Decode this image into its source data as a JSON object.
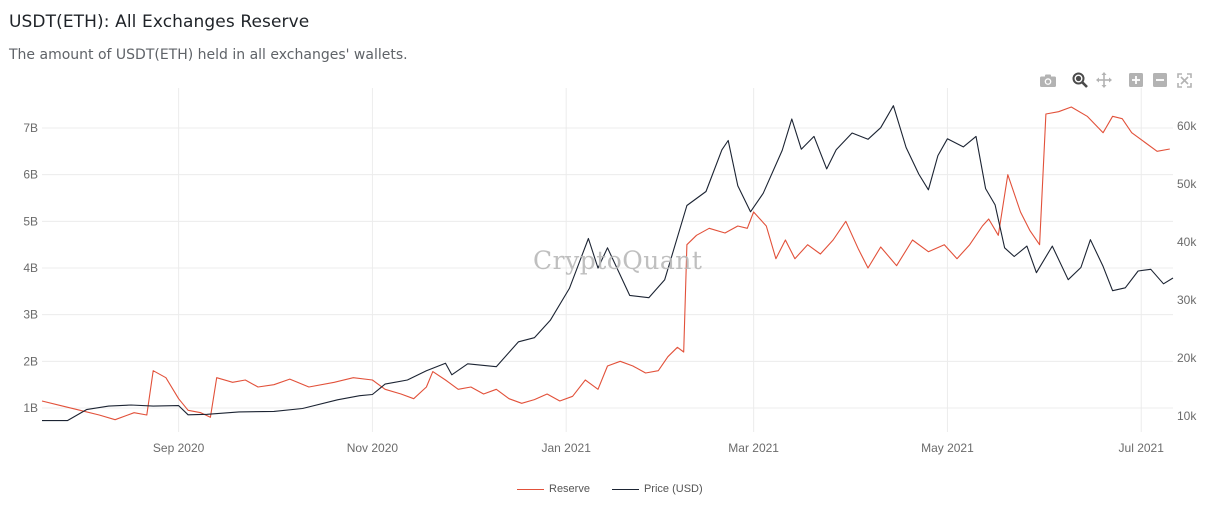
{
  "header": {
    "title": "USDT(ETH): All Exchanges Reserve",
    "subtitle": "The amount of USDT(ETH) held in all exchanges' wallets."
  },
  "watermark": "CryptoQuant",
  "modebar": [
    {
      "name": "camera-icon",
      "label": "Download plot as png"
    },
    {
      "name": "zoom-icon",
      "label": "Zoom"
    },
    {
      "name": "pan-icon",
      "label": "Pan"
    },
    {
      "name": "zoom-in-icon",
      "label": "Zoom in"
    },
    {
      "name": "zoom-out-icon",
      "label": "Zoom out"
    },
    {
      "name": "autoscale-icon",
      "label": "Autoscale"
    }
  ],
  "colors": {
    "reserve": "#e2513a",
    "price": "#1c2433",
    "grid": "#ececec"
  },
  "chart_data": {
    "type": "line",
    "title": "USDT(ETH): All Exchanges Reserve",
    "x_range": [
      "2020-07-20",
      "2021-07-11"
    ],
    "x_ticks": [
      {
        "date": "2020-09-01",
        "label": "Sep 2020"
      },
      {
        "date": "2020-11-01",
        "label": "Nov 2020"
      },
      {
        "date": "2021-01-01",
        "label": "Jan 2021"
      },
      {
        "date": "2021-03-01",
        "label": "Mar 2021"
      },
      {
        "date": "2021-05-01",
        "label": "May 2021"
      },
      {
        "date": "2021-07-01",
        "label": "Jul 2021"
      }
    ],
    "y_left": {
      "ticks": [
        1,
        2,
        3,
        4,
        5,
        6,
        7
      ],
      "tick_labels": [
        "1B",
        "2B",
        "3B",
        "4B",
        "5B",
        "6B",
        "7B"
      ],
      "unit": "B"
    },
    "y_right": {
      "ticks": [
        10000,
        20000,
        30000,
        40000,
        50000,
        60000
      ],
      "tick_labels": [
        "10k",
        "20k",
        "30k",
        "40k",
        "50k",
        "60k"
      ]
    },
    "grid": true,
    "legend_position": "bottom-center",
    "series": [
      {
        "name": "Reserve",
        "axis": "left",
        "unit": "USDT (billions)",
        "points": [
          [
            "2020-07-20",
            1.15
          ],
          [
            "2020-07-26",
            1.05
          ],
          [
            "2020-08-01",
            0.95
          ],
          [
            "2020-08-07",
            0.85
          ],
          [
            "2020-08-12",
            0.75
          ],
          [
            "2020-08-18",
            0.9
          ],
          [
            "2020-08-22",
            0.85
          ],
          [
            "2020-08-24",
            1.8
          ],
          [
            "2020-08-28",
            1.65
          ],
          [
            "2020-09-01",
            1.2
          ],
          [
            "2020-09-04",
            0.95
          ],
          [
            "2020-09-08",
            0.9
          ],
          [
            "2020-09-11",
            0.8
          ],
          [
            "2020-09-13",
            1.65
          ],
          [
            "2020-09-18",
            1.55
          ],
          [
            "2020-09-22",
            1.6
          ],
          [
            "2020-09-26",
            1.45
          ],
          [
            "2020-10-01",
            1.5
          ],
          [
            "2020-10-06",
            1.62
          ],
          [
            "2020-10-12",
            1.45
          ],
          [
            "2020-10-20",
            1.55
          ],
          [
            "2020-10-26",
            1.65
          ],
          [
            "2020-11-01",
            1.6
          ],
          [
            "2020-11-05",
            1.4
          ],
          [
            "2020-11-10",
            1.3
          ],
          [
            "2020-11-14",
            1.2
          ],
          [
            "2020-11-18",
            1.45
          ],
          [
            "2020-11-20",
            1.78
          ],
          [
            "2020-11-24",
            1.6
          ],
          [
            "2020-11-28",
            1.4
          ],
          [
            "2020-12-02",
            1.45
          ],
          [
            "2020-12-06",
            1.3
          ],
          [
            "2020-12-10",
            1.4
          ],
          [
            "2020-12-14",
            1.2
          ],
          [
            "2020-12-18",
            1.1
          ],
          [
            "2020-12-22",
            1.18
          ],
          [
            "2020-12-26",
            1.3
          ],
          [
            "2020-12-30",
            1.15
          ],
          [
            "2021-01-03",
            1.25
          ],
          [
            "2021-01-07",
            1.6
          ],
          [
            "2021-01-11",
            1.4
          ],
          [
            "2021-01-14",
            1.9
          ],
          [
            "2021-01-18",
            2.0
          ],
          [
            "2021-01-22",
            1.9
          ],
          [
            "2021-01-26",
            1.75
          ],
          [
            "2021-01-30",
            1.8
          ],
          [
            "2021-02-02",
            2.1
          ],
          [
            "2021-02-05",
            2.3
          ],
          [
            "2021-02-07",
            2.2
          ],
          [
            "2021-02-08",
            4.5
          ],
          [
            "2021-02-11",
            4.7
          ],
          [
            "2021-02-15",
            4.85
          ],
          [
            "2021-02-20",
            4.75
          ],
          [
            "2021-02-24",
            4.9
          ],
          [
            "2021-02-27",
            4.85
          ],
          [
            "2021-03-01",
            5.2
          ],
          [
            "2021-03-05",
            4.9
          ],
          [
            "2021-03-08",
            4.2
          ],
          [
            "2021-03-11",
            4.6
          ],
          [
            "2021-03-14",
            4.2
          ],
          [
            "2021-03-18",
            4.5
          ],
          [
            "2021-03-22",
            4.3
          ],
          [
            "2021-03-26",
            4.6
          ],
          [
            "2021-03-30",
            5.0
          ],
          [
            "2021-04-03",
            4.4
          ],
          [
            "2021-04-06",
            4.0
          ],
          [
            "2021-04-10",
            4.45
          ],
          [
            "2021-04-15",
            4.05
          ],
          [
            "2021-04-20",
            4.6
          ],
          [
            "2021-04-25",
            4.35
          ],
          [
            "2021-04-30",
            4.5
          ],
          [
            "2021-05-04",
            4.2
          ],
          [
            "2021-05-08",
            4.5
          ],
          [
            "2021-05-12",
            4.9
          ],
          [
            "2021-05-14",
            5.05
          ],
          [
            "2021-05-17",
            4.7
          ],
          [
            "2021-05-20",
            6.0
          ],
          [
            "2021-05-24",
            5.2
          ],
          [
            "2021-05-27",
            4.8
          ],
          [
            "2021-05-30",
            4.5
          ],
          [
            "2021-06-01",
            7.3
          ],
          [
            "2021-06-05",
            7.35
          ],
          [
            "2021-06-09",
            7.45
          ],
          [
            "2021-06-14",
            7.25
          ],
          [
            "2021-06-19",
            6.9
          ],
          [
            "2021-06-22",
            7.25
          ],
          [
            "2021-06-25",
            7.2
          ],
          [
            "2021-06-28",
            6.9
          ],
          [
            "2021-07-02",
            6.7
          ],
          [
            "2021-07-06",
            6.5
          ],
          [
            "2021-07-10",
            6.55
          ]
        ]
      },
      {
        "name": "Price (USD)",
        "axis": "right",
        "unit": "USD",
        "points": [
          [
            "2020-07-20",
            9200
          ],
          [
            "2020-07-28",
            9200
          ],
          [
            "2020-08-03",
            11100
          ],
          [
            "2020-08-10",
            11700
          ],
          [
            "2020-08-17",
            11900
          ],
          [
            "2020-08-24",
            11700
          ],
          [
            "2020-09-01",
            11800
          ],
          [
            "2020-09-04",
            10200
          ],
          [
            "2020-09-10",
            10300
          ],
          [
            "2020-09-20",
            10700
          ],
          [
            "2020-10-01",
            10800
          ],
          [
            "2020-10-10",
            11300
          ],
          [
            "2020-10-21",
            12800
          ],
          [
            "2020-10-28",
            13500
          ],
          [
            "2020-11-01",
            13700
          ],
          [
            "2020-11-05",
            15500
          ],
          [
            "2020-11-12",
            16200
          ],
          [
            "2020-11-18",
            17800
          ],
          [
            "2020-11-24",
            19100
          ],
          [
            "2020-11-26",
            17100
          ],
          [
            "2020-12-01",
            19000
          ],
          [
            "2020-12-10",
            18500
          ],
          [
            "2020-12-17",
            22800
          ],
          [
            "2020-12-22",
            23500
          ],
          [
            "2020-12-27",
            26500
          ],
          [
            "2021-01-02",
            32000
          ],
          [
            "2021-01-08",
            40600
          ],
          [
            "2021-01-11",
            35500
          ],
          [
            "2021-01-14",
            39000
          ],
          [
            "2021-01-21",
            30800
          ],
          [
            "2021-01-27",
            30400
          ],
          [
            "2021-02-01",
            33500
          ],
          [
            "2021-02-08",
            46300
          ],
          [
            "2021-02-14",
            48700
          ],
          [
            "2021-02-19",
            55900
          ],
          [
            "2021-02-21",
            57500
          ],
          [
            "2021-02-24",
            49700
          ],
          [
            "2021-02-28",
            45200
          ],
          [
            "2021-03-04",
            48400
          ],
          [
            "2021-03-10",
            55800
          ],
          [
            "2021-03-13",
            61200
          ],
          [
            "2021-03-16",
            56000
          ],
          [
            "2021-03-20",
            58200
          ],
          [
            "2021-03-24",
            52600
          ],
          [
            "2021-03-27",
            55900
          ],
          [
            "2021-04-01",
            58800
          ],
          [
            "2021-04-06",
            57700
          ],
          [
            "2021-04-10",
            59700
          ],
          [
            "2021-04-14",
            63500
          ],
          [
            "2021-04-18",
            56300
          ],
          [
            "2021-04-22",
            51700
          ],
          [
            "2021-04-25",
            49000
          ],
          [
            "2021-04-28",
            54900
          ],
          [
            "2021-05-01",
            57800
          ],
          [
            "2021-05-06",
            56400
          ],
          [
            "2021-05-10",
            58200
          ],
          [
            "2021-05-13",
            49200
          ],
          [
            "2021-05-16",
            46400
          ],
          [
            "2021-05-19",
            39000
          ],
          [
            "2021-05-22",
            37500
          ],
          [
            "2021-05-26",
            39300
          ],
          [
            "2021-05-29",
            34700
          ],
          [
            "2021-06-03",
            39300
          ],
          [
            "2021-06-08",
            33500
          ],
          [
            "2021-06-12",
            35600
          ],
          [
            "2021-06-15",
            40400
          ],
          [
            "2021-06-19",
            35800
          ],
          [
            "2021-06-22",
            31600
          ],
          [
            "2021-06-26",
            32100
          ],
          [
            "2021-06-30",
            35000
          ],
          [
            "2021-07-04",
            35300
          ],
          [
            "2021-07-08",
            32800
          ],
          [
            "2021-07-11",
            33800
          ]
        ]
      }
    ]
  }
}
